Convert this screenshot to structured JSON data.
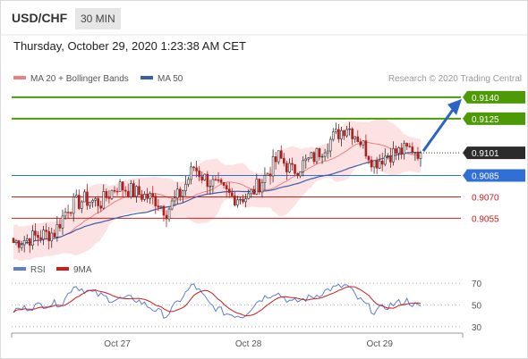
{
  "header": {
    "symbol": "USD/CHF",
    "timeframe": "30 MIN",
    "datetime": "Thursday, October 29, 2020 1:23:38 AM CET"
  },
  "chart_data": [
    {
      "type": "line",
      "legend": {
        "items": [
          {
            "name": "MA 20 + Bollinger Bands",
            "color": "#f08080"
          },
          {
            "name": "MA 50",
            "color": "#3a5fa8"
          }
        ],
        "placement": "top-left"
      },
      "credit": "Research © 2020 Trading Central",
      "ylim": [
        0.9032,
        0.915
      ],
      "levels": [
        {
          "value": 0.914,
          "label": "0.9140",
          "style": "resistance-strong",
          "color": "#4e9a06"
        },
        {
          "value": 0.9125,
          "label": "0.9125",
          "style": "resistance",
          "color": "#4e9a06"
        },
        {
          "value": 0.9085,
          "label": "0.9085",
          "style": "pivot",
          "color": "#2f6fd6"
        },
        {
          "value": 0.907,
          "label": "0.9070",
          "style": "support",
          "color": "#d11a1a"
        },
        {
          "value": 0.9055,
          "label": "0.9055",
          "style": "support",
          "color": "#d11a1a"
        }
      ],
      "last_price": {
        "value": 0.9101,
        "label": "0.9101"
      },
      "forecast_target": 0.914,
      "x_ticks": [
        {
          "index": 38,
          "label": "Oct 27"
        },
        {
          "index": 86,
          "label": "Oct 28"
        },
        {
          "index": 134,
          "label": "Oct 29"
        }
      ],
      "num_candles": 150,
      "close_anchors": [
        [
          0,
          0.9038
        ],
        [
          8,
          0.9042
        ],
        [
          15,
          0.9045
        ],
        [
          20,
          0.9063
        ],
        [
          26,
          0.9068
        ],
        [
          32,
          0.9066
        ],
        [
          38,
          0.9078
        ],
        [
          46,
          0.9072
        ],
        [
          52,
          0.9068
        ],
        [
          56,
          0.906
        ],
        [
          62,
          0.9075
        ],
        [
          66,
          0.9091
        ],
        [
          70,
          0.9083
        ],
        [
          76,
          0.9075
        ],
        [
          80,
          0.907
        ],
        [
          86,
          0.907
        ],
        [
          92,
          0.9084
        ],
        [
          97,
          0.9098
        ],
        [
          102,
          0.9088
        ],
        [
          110,
          0.9098
        ],
        [
          116,
          0.911
        ],
        [
          122,
          0.912
        ],
        [
          126,
          0.9112
        ],
        [
          132,
          0.9094
        ],
        [
          137,
          0.91
        ],
        [
          142,
          0.9102
        ],
        [
          146,
          0.9104
        ],
        [
          149,
          0.9101
        ]
      ]
    },
    {
      "type": "line",
      "legend": {
        "items": [
          {
            "name": "RSI",
            "color": "#5b7fd4"
          },
          {
            "name": "9MA",
            "color": "#d11a1a"
          }
        ],
        "placement": "top-left"
      },
      "ylim": [
        20,
        80
      ],
      "y_ticks": [
        70,
        50,
        30
      ],
      "rsi_anchors": [
        [
          0,
          45
        ],
        [
          10,
          50
        ],
        [
          18,
          52
        ],
        [
          22,
          68
        ],
        [
          28,
          62
        ],
        [
          36,
          55
        ],
        [
          44,
          56
        ],
        [
          50,
          48
        ],
        [
          56,
          40
        ],
        [
          62,
          58
        ],
        [
          66,
          69
        ],
        [
          72,
          50
        ],
        [
          78,
          42
        ],
        [
          84,
          40
        ],
        [
          90,
          55
        ],
        [
          96,
          62
        ],
        [
          102,
          52
        ],
        [
          110,
          58
        ],
        [
          116,
          65
        ],
        [
          122,
          68
        ],
        [
          126,
          56
        ],
        [
          132,
          44
        ],
        [
          138,
          50
        ],
        [
          144,
          54
        ],
        [
          149,
          47
        ]
      ]
    }
  ]
}
